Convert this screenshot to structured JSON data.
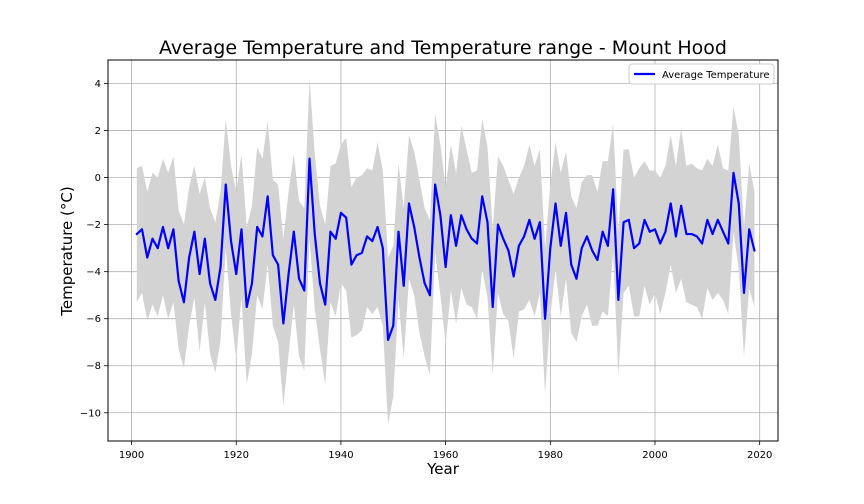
{
  "chart_data": {
    "type": "line",
    "title": "Average Temperature and Temperature range - Mount Hood",
    "xlabel": "Year",
    "ylabel": "Temperature (°C)",
    "xlim": [
      1895.5,
      2023.5
    ],
    "ylim": [
      -11.2,
      5.0
    ],
    "x_ticks": [
      1900,
      1920,
      1940,
      1960,
      1980,
      2000,
      2020
    ],
    "y_ticks": [
      -10,
      -8,
      -6,
      -4,
      -2,
      0,
      2,
      4
    ],
    "y_tick_labels": [
      "−10",
      "−8",
      "−6",
      "−4",
      "−2",
      "0",
      "2",
      "4"
    ],
    "grid": true,
    "legend_position": "top-right",
    "series": [
      {
        "name": "Average Temperature",
        "color": "#0000ff",
        "x": [
          1901,
          1902,
          1903,
          1904,
          1905,
          1906,
          1907,
          1908,
          1909,
          1910,
          1911,
          1912,
          1913,
          1914,
          1915,
          1916,
          1917,
          1918,
          1919,
          1920,
          1921,
          1922,
          1923,
          1924,
          1925,
          1926,
          1927,
          1928,
          1929,
          1930,
          1931,
          1932,
          1933,
          1934,
          1935,
          1936,
          1937,
          1938,
          1939,
          1940,
          1941,
          1942,
          1943,
          1944,
          1945,
          1946,
          1947,
          1948,
          1949,
          1950,
          1951,
          1952,
          1953,
          1954,
          1955,
          1956,
          1957,
          1958,
          1959,
          1960,
          1961,
          1962,
          1963,
          1964,
          1965,
          1966,
          1967,
          1968,
          1969,
          1970,
          1971,
          1972,
          1973,
          1974,
          1975,
          1976,
          1977,
          1978,
          1979,
          1980,
          1981,
          1982,
          1983,
          1984,
          1985,
          1986,
          1987,
          1988,
          1989,
          1990,
          1991,
          1992,
          1993,
          1994,
          1995,
          1996,
          1997,
          1998,
          1999,
          2000,
          2001,
          2002,
          2003,
          2004,
          2005,
          2006,
          2007,
          2008,
          2009,
          2010,
          2011,
          2012,
          2013,
          2014,
          2015,
          2016,
          2017,
          2018,
          2019
        ],
        "values": [
          -2.4,
          -2.2,
          -3.4,
          -2.6,
          -3.0,
          -2.1,
          -3.0,
          -2.2,
          -4.4,
          -5.3,
          -3.4,
          -2.3,
          -4.1,
          -2.6,
          -4.5,
          -5.2,
          -3.8,
          -0.3,
          -2.7,
          -4.1,
          -2.2,
          -5.5,
          -4.5,
          -2.1,
          -2.5,
          -0.8,
          -3.3,
          -3.7,
          -6.2,
          -4.1,
          -2.3,
          -4.3,
          -4.8,
          0.8,
          -2.4,
          -4.5,
          -5.4,
          -2.3,
          -2.6,
          -1.5,
          -1.7,
          -3.7,
          -3.3,
          -3.2,
          -2.5,
          -2.7,
          -2.1,
          -3.0,
          -6.9,
          -6.3,
          -2.3,
          -4.6,
          -1.1,
          -2.1,
          -3.4,
          -4.5,
          -5.0,
          -0.3,
          -1.6,
          -3.8,
          -1.6,
          -2.9,
          -1.6,
          -2.2,
          -2.6,
          -2.8,
          -0.8,
          -1.9,
          -5.5,
          -2.0,
          -2.6,
          -3.1,
          -4.2,
          -2.9,
          -2.5,
          -1.8,
          -2.6,
          -1.9,
          -6.0,
          -3.0,
          -1.1,
          -2.9,
          -1.5,
          -3.7,
          -4.3,
          -3.0,
          -2.5,
          -3.1,
          -3.5,
          -2.3,
          -2.9,
          -0.5,
          -5.2,
          -1.9,
          -1.8,
          -3.0,
          -2.8,
          -1.8,
          -2.3,
          -2.2,
          -2.8,
          -2.3,
          -1.1,
          -2.5,
          -1.2,
          -2.4,
          -2.4,
          -2.5,
          -2.8,
          -1.8,
          -2.4,
          -1.8,
          -2.3,
          -2.8,
          0.2,
          -1.1,
          -4.9,
          -2.2,
          -3.1
        ]
      }
    ],
    "range_band": {
      "color": "#d3d3d3",
      "upper": [
        0.4,
        0.5,
        -0.6,
        0.2,
        0.0,
        0.8,
        0.2,
        0.9,
        -1.4,
        -2.0,
        -0.4,
        0.5,
        -0.7,
        0.0,
        -1.3,
        -1.9,
        -0.6,
        2.5,
        0.5,
        -0.6,
        1.0,
        -2.1,
        -1.2,
        1.3,
        0.8,
        2.4,
        -0.1,
        -0.3,
        -2.6,
        -0.6,
        1.0,
        -1.0,
        -1.3,
        4.2,
        1.0,
        -1.2,
        -2.0,
        0.5,
        0.6,
        1.4,
        1.7,
        -0.4,
        0.0,
        0.1,
        0.4,
        0.3,
        1.5,
        0.3,
        -3.4,
        -2.9,
        0.6,
        -1.3,
        1.8,
        1.1,
        -0.1,
        -1.3,
        -1.8,
        2.7,
        1.4,
        -0.4,
        1.4,
        0.2,
        2.2,
        1.2,
        0.2,
        0.3,
        2.5,
        1.3,
        -2.2,
        0.9,
        0.5,
        -0.1,
        -0.7,
        0.0,
        0.5,
        1.4,
        0.5,
        1.2,
        -3.0,
        -0.3,
        1.5,
        0.2,
        1.1,
        -0.8,
        -1.3,
        -0.2,
        0.1,
        0.1,
        -0.6,
        0.7,
        0.7,
        2.3,
        -2.3,
        1.2,
        1.2,
        0.0,
        0.4,
        0.7,
        0.3,
        0.3,
        0.0,
        0.5,
        1.8,
        0.5,
        2.1,
        0.5,
        0.6,
        0.4,
        0.3,
        0.8,
        0.5,
        1.4,
        0.4,
        0.3,
        3.0,
        1.8,
        -2.1,
        0.6,
        -0.6
      ],
      "lower": [
        -5.3,
        -4.9,
        -6.1,
        -5.4,
        -5.9,
        -5.0,
        -6.0,
        -5.3,
        -7.3,
        -8.1,
        -6.3,
        -5.1,
        -7.4,
        -5.3,
        -7.5,
        -8.3,
        -6.9,
        -3.0,
        -5.8,
        -7.7,
        -5.1,
        -8.8,
        -7.5,
        -5.0,
        -5.6,
        -3.7,
        -6.3,
        -7.0,
        -9.7,
        -7.5,
        -5.4,
        -7.6,
        -8.2,
        -2.6,
        -5.6,
        -7.3,
        -8.8,
        -5.3,
        -5.9,
        -4.5,
        -4.8,
        -6.8,
        -6.7,
        -6.5,
        -5.5,
        -5.8,
        -5.5,
        -6.3,
        -10.5,
        -9.3,
        -5.2,
        -7.7,
        -4.3,
        -5.0,
        -6.6,
        -7.6,
        -8.4,
        -3.2,
        -5.0,
        -7.1,
        -4.8,
        -6.2,
        -4.7,
        -5.4,
        -5.5,
        -6.0,
        -3.9,
        -5.1,
        -8.4,
        -4.9,
        -5.8,
        -6.1,
        -7.7,
        -5.7,
        -5.6,
        -5.2,
        -5.9,
        -4.9,
        -9.2,
        -5.9,
        -3.9,
        -5.9,
        -4.3,
        -6.6,
        -7.0,
        -5.9,
        -5.4,
        -6.3,
        -6.3,
        -5.7,
        -5.9,
        -3.2,
        -8.4,
        -4.9,
        -4.6,
        -5.9,
        -5.9,
        -4.6,
        -5.4,
        -4.9,
        -5.8,
        -4.9,
        -3.7,
        -4.9,
        -4.3,
        -5.3,
        -5.4,
        -5.5,
        -6.0,
        -4.7,
        -5.2,
        -4.9,
        -5.2,
        -5.8,
        -2.3,
        -3.9,
        -7.6,
        -4.7,
        -5.5
      ]
    }
  }
}
